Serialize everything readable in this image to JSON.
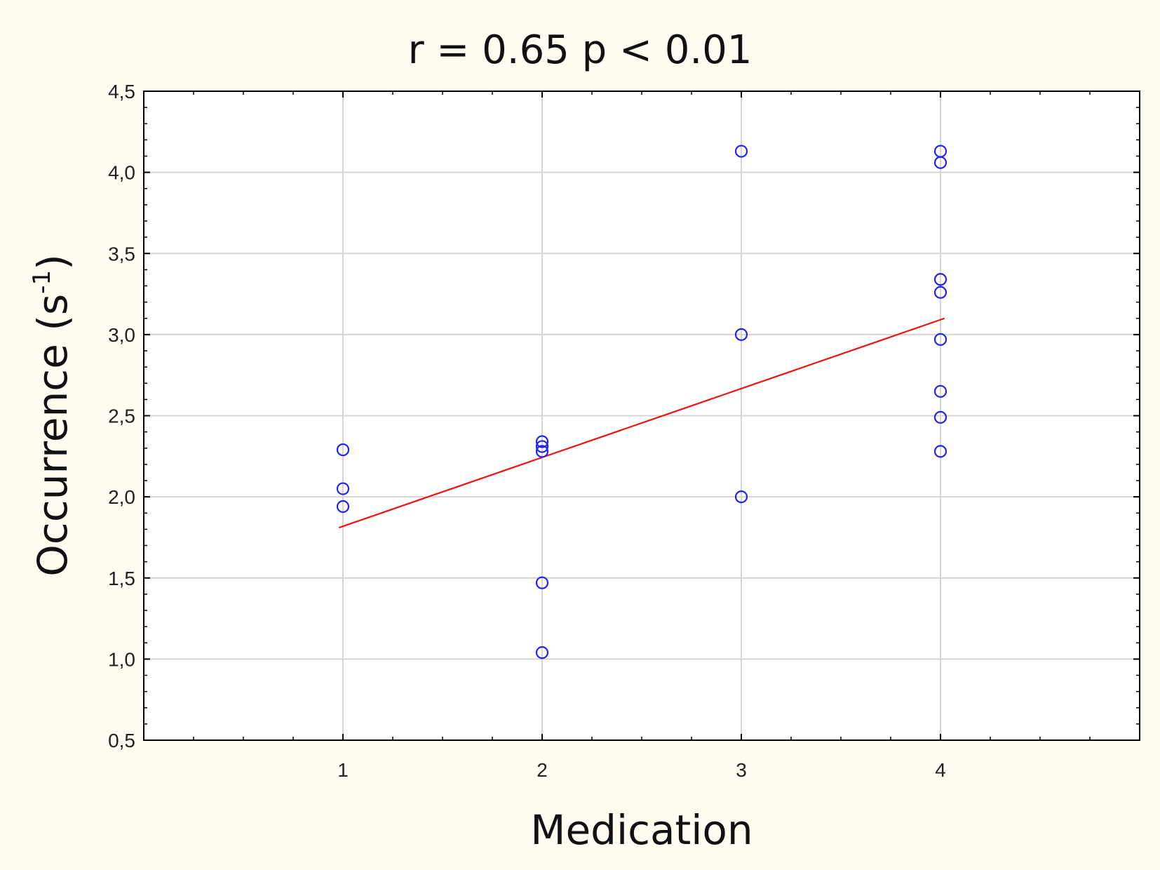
{
  "chart_data": {
    "type": "scatter",
    "title": "r = 0.65 p < 0.01",
    "xlabel": "Medication",
    "ylabel": "Occurrence (s",
    "ylabel_superscript": "-1",
    "ylabel_suffix": ")",
    "xlim": [
      0,
      5
    ],
    "ylim": [
      0.5,
      4.5
    ],
    "x_ticks": [
      1,
      2,
      3,
      4
    ],
    "x_tick_labels": [
      "1",
      "2",
      "3",
      "4"
    ],
    "y_ticks": [
      0.5,
      1.0,
      1.5,
      2.0,
      2.5,
      3.0,
      3.5,
      4.0,
      4.5
    ],
    "y_tick_labels": [
      "0,5",
      "1,0",
      "1,5",
      "2,0",
      "2,5",
      "3,0",
      "3,5",
      "4,0",
      "4,5"
    ],
    "grid": true,
    "colors": {
      "points": "#2222ee",
      "fit_line": "#ee1111",
      "background": "#fffcf1",
      "plot_background": "#ffffff",
      "grid": "#d4d4d4"
    },
    "series": [
      {
        "values": [
          {
            "x": 1,
            "y": 2.29
          },
          {
            "x": 1,
            "y": 2.05
          },
          {
            "x": 1,
            "y": 1.94
          },
          {
            "x": 2,
            "y": 2.34
          },
          {
            "x": 2,
            "y": 2.31
          },
          {
            "x": 2,
            "y": 2.28
          },
          {
            "x": 2,
            "y": 1.47
          },
          {
            "x": 2,
            "y": 1.04
          },
          {
            "x": 3,
            "y": 4.13
          },
          {
            "x": 3,
            "y": 3.0
          },
          {
            "x": 3,
            "y": 2.0
          },
          {
            "x": 4,
            "y": 4.13
          },
          {
            "x": 4,
            "y": 4.06
          },
          {
            "x": 4,
            "y": 3.34
          },
          {
            "x": 4,
            "y": 3.26
          },
          {
            "x": 4,
            "y": 2.97
          },
          {
            "x": 4,
            "y": 2.65
          },
          {
            "x": 4,
            "y": 2.49
          },
          {
            "x": 4,
            "y": 2.28
          }
        ]
      }
    ],
    "fit_line": {
      "x": [
        0.98,
        4.02
      ],
      "y": [
        1.81,
        3.1
      ]
    }
  }
}
